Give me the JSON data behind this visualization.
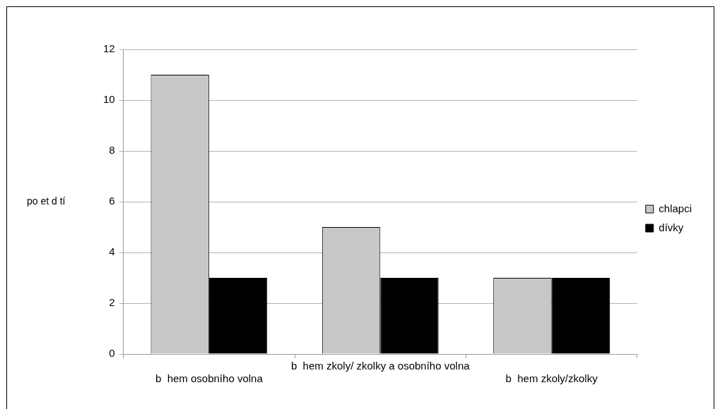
{
  "chart_data": {
    "type": "bar",
    "ylabel": "po et d tí",
    "categories": [
      "b  hem osobního volna",
      "b  hem zkoly/ zkolky a osobního volna",
      "b  hem zkoly/zkolky"
    ],
    "series": [
      {
        "name": "chlapci",
        "color": "#c8c8c8",
        "values": [
          11,
          5,
          3
        ]
      },
      {
        "name": "dívky",
        "color": "#000000",
        "values": [
          3,
          3,
          3
        ]
      }
    ],
    "ylim": [
      0,
      12
    ],
    "yticks": [
      0,
      2,
      4,
      6,
      8,
      10,
      12
    ],
    "grid": "y",
    "legend": "right"
  }
}
